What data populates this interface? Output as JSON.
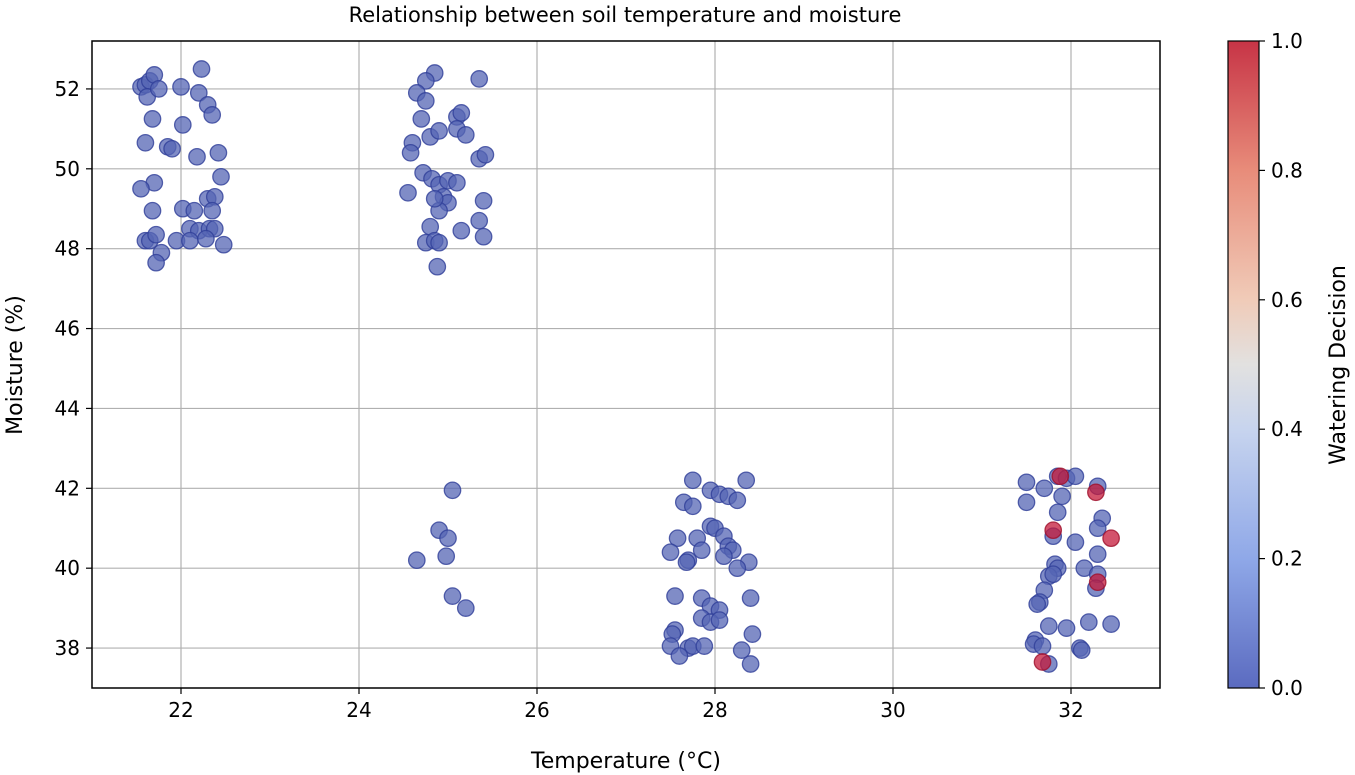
{
  "chart_data": {
    "type": "scatter",
    "title": "Relationship between soil temperature and moisture",
    "xlabel": "Temperature (°C)",
    "ylabel": "Moisture (%)",
    "xlim": [
      21.0,
      33.0
    ],
    "ylim": [
      37.0,
      53.2
    ],
    "xticks": [
      22,
      24,
      26,
      28,
      30,
      32
    ],
    "yticks": [
      38,
      40,
      42,
      44,
      46,
      48,
      50,
      52
    ],
    "grid": true,
    "colorbar": {
      "label": "Watering Decision",
      "range": [
        0.0,
        1.0
      ],
      "ticks": [
        "0.0",
        "0.2",
        "0.4",
        "0.6",
        "0.8",
        "1.0"
      ],
      "low_color": "#4a5cb8",
      "mid_color": "#dddddd",
      "high_color": "#c0152f",
      "colormap": "coolwarm"
    },
    "series": [
      {
        "name": "Watering Decision = 0",
        "color_value": 0,
        "points": [
          [
            21.55,
            52.05
          ],
          [
            21.6,
            52.1
          ],
          [
            21.65,
            52.2
          ],
          [
            21.7,
            52.35
          ],
          [
            21.62,
            51.8
          ],
          [
            21.75,
            52.0
          ],
          [
            22.0,
            52.05
          ],
          [
            22.23,
            52.5
          ],
          [
            22.2,
            51.9
          ],
          [
            22.3,
            51.6
          ],
          [
            22.35,
            51.35
          ],
          [
            21.68,
            51.25
          ],
          [
            22.02,
            51.1
          ],
          [
            21.6,
            50.65
          ],
          [
            21.85,
            50.55
          ],
          [
            21.9,
            50.5
          ],
          [
            22.18,
            50.3
          ],
          [
            22.42,
            50.4
          ],
          [
            21.7,
            49.65
          ],
          [
            21.55,
            49.5
          ],
          [
            22.45,
            49.8
          ],
          [
            22.3,
            49.25
          ],
          [
            22.38,
            49.3
          ],
          [
            21.68,
            48.95
          ],
          [
            22.02,
            49.0
          ],
          [
            22.15,
            48.95
          ],
          [
            22.35,
            48.95
          ],
          [
            22.1,
            48.5
          ],
          [
            22.2,
            48.45
          ],
          [
            22.32,
            48.5
          ],
          [
            22.38,
            48.5
          ],
          [
            21.6,
            48.2
          ],
          [
            21.65,
            48.2
          ],
          [
            21.72,
            48.35
          ],
          [
            21.95,
            48.2
          ],
          [
            22.1,
            48.2
          ],
          [
            22.28,
            48.25
          ],
          [
            22.48,
            48.1
          ],
          [
            21.78,
            47.9
          ],
          [
            21.72,
            47.65
          ],
          [
            24.85,
            52.4
          ],
          [
            24.75,
            52.2
          ],
          [
            25.35,
            52.25
          ],
          [
            24.65,
            51.9
          ],
          [
            24.75,
            51.7
          ],
          [
            25.1,
            51.3
          ],
          [
            25.15,
            51.4
          ],
          [
            24.7,
            51.25
          ],
          [
            24.8,
            50.8
          ],
          [
            24.9,
            50.95
          ],
          [
            25.1,
            51.0
          ],
          [
            25.2,
            50.85
          ],
          [
            24.6,
            50.65
          ],
          [
            24.58,
            50.4
          ],
          [
            25.35,
            50.25
          ],
          [
            25.42,
            50.35
          ],
          [
            24.72,
            49.9
          ],
          [
            24.82,
            49.75
          ],
          [
            24.9,
            49.6
          ],
          [
            25.0,
            49.7
          ],
          [
            25.1,
            49.65
          ],
          [
            24.55,
            49.4
          ],
          [
            24.95,
            49.3
          ],
          [
            25.0,
            49.15
          ],
          [
            24.9,
            48.95
          ],
          [
            25.4,
            49.2
          ],
          [
            24.85,
            49.25
          ],
          [
            25.35,
            48.7
          ],
          [
            24.8,
            48.55
          ],
          [
            24.75,
            48.15
          ],
          [
            24.85,
            48.2
          ],
          [
            24.9,
            48.15
          ],
          [
            25.15,
            48.45
          ],
          [
            25.4,
            48.3
          ],
          [
            24.88,
            47.55
          ],
          [
            25.05,
            41.95
          ],
          [
            24.9,
            40.95
          ],
          [
            25.0,
            40.75
          ],
          [
            24.65,
            40.2
          ],
          [
            24.98,
            40.3
          ],
          [
            25.05,
            39.3
          ],
          [
            25.2,
            39.0
          ],
          [
            27.75,
            42.2
          ],
          [
            28.35,
            42.2
          ],
          [
            27.95,
            41.95
          ],
          [
            28.05,
            41.85
          ],
          [
            28.15,
            41.8
          ],
          [
            28.25,
            41.7
          ],
          [
            27.65,
            41.65
          ],
          [
            27.75,
            41.55
          ],
          [
            27.95,
            41.05
          ],
          [
            28.0,
            41.0
          ],
          [
            28.1,
            40.8
          ],
          [
            27.8,
            40.75
          ],
          [
            28.15,
            40.55
          ],
          [
            28.2,
            40.45
          ],
          [
            27.58,
            40.75
          ],
          [
            27.5,
            40.4
          ],
          [
            27.85,
            40.45
          ],
          [
            28.1,
            40.3
          ],
          [
            27.7,
            40.2
          ],
          [
            27.68,
            40.15
          ],
          [
            28.38,
            40.15
          ],
          [
            28.25,
            40.0
          ],
          [
            27.55,
            39.3
          ],
          [
            27.85,
            39.25
          ],
          [
            27.95,
            39.05
          ],
          [
            28.05,
            38.95
          ],
          [
            28.4,
            39.25
          ],
          [
            27.85,
            38.75
          ],
          [
            27.95,
            38.65
          ],
          [
            28.05,
            38.7
          ],
          [
            27.55,
            38.45
          ],
          [
            27.52,
            38.35
          ],
          [
            28.42,
            38.35
          ],
          [
            27.5,
            38.05
          ],
          [
            27.7,
            38.0
          ],
          [
            27.75,
            38.05
          ],
          [
            27.88,
            38.05
          ],
          [
            28.3,
            37.95
          ],
          [
            27.6,
            37.8
          ],
          [
            28.4,
            37.6
          ],
          [
            31.85,
            42.3
          ],
          [
            31.95,
            42.25
          ],
          [
            32.05,
            42.3
          ],
          [
            31.5,
            42.15
          ],
          [
            31.7,
            42.0
          ],
          [
            31.9,
            41.8
          ],
          [
            32.3,
            42.05
          ],
          [
            31.5,
            41.65
          ],
          [
            31.85,
            41.4
          ],
          [
            32.35,
            41.25
          ],
          [
            32.3,
            41.0
          ],
          [
            31.8,
            40.8
          ],
          [
            32.05,
            40.65
          ],
          [
            32.3,
            40.35
          ],
          [
            31.82,
            40.1
          ],
          [
            31.85,
            40.0
          ],
          [
            32.15,
            40.0
          ],
          [
            31.75,
            39.8
          ],
          [
            31.8,
            39.85
          ],
          [
            32.3,
            39.85
          ],
          [
            31.7,
            39.45
          ],
          [
            32.28,
            39.5
          ],
          [
            31.65,
            39.15
          ],
          [
            31.62,
            39.1
          ],
          [
            31.75,
            38.55
          ],
          [
            31.95,
            38.5
          ],
          [
            32.2,
            38.65
          ],
          [
            32.45,
            38.6
          ],
          [
            31.6,
            38.2
          ],
          [
            31.58,
            38.1
          ],
          [
            31.68,
            38.05
          ],
          [
            32.1,
            38.0
          ],
          [
            32.12,
            37.95
          ],
          [
            31.75,
            37.6
          ]
        ]
      },
      {
        "name": "Watering Decision = 1",
        "color_value": 1,
        "points": [
          [
            31.88,
            42.3
          ],
          [
            32.28,
            41.9
          ],
          [
            31.8,
            40.95
          ],
          [
            32.45,
            40.75
          ],
          [
            32.3,
            39.65
          ],
          [
            31.68,
            37.65
          ]
        ]
      }
    ]
  }
}
